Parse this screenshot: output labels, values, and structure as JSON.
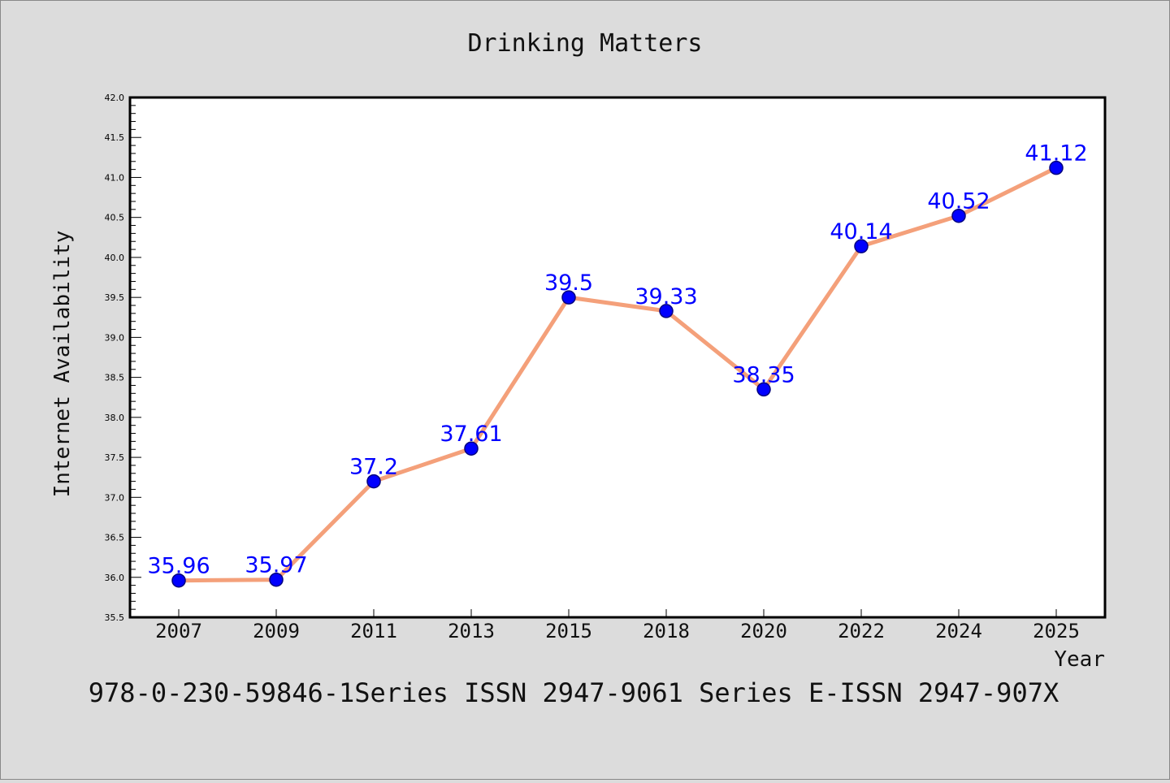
{
  "chart_data": {
    "type": "line",
    "title": "Drinking Matters",
    "xlabel": "Year",
    "ylabel": "Internet Availability",
    "categories": [
      "2007",
      "2009",
      "2011",
      "2013",
      "2015",
      "2018",
      "2020",
      "2022",
      "2024",
      "2025"
    ],
    "series": [
      {
        "values": [
          35.96,
          35.97,
          37.2,
          37.61,
          39.5,
          39.33,
          38.35,
          40.14,
          40.52,
          41.12
        ],
        "labels": [
          "35.96",
          "35.97",
          "37.2",
          "37.61",
          "39.5",
          "39.33",
          "38.35",
          "40.14",
          "40.52",
          "41.12"
        ]
      }
    ],
    "ylim": [
      35.5,
      42.0
    ],
    "yticks": [
      "35.5",
      "36.0",
      "36.5",
      "37.0",
      "37.5",
      "38.0",
      "38.5",
      "39.0",
      "39.5",
      "40.0",
      "40.5",
      "41.0",
      "41.5",
      "42.0"
    ],
    "grid": false,
    "legend": "none",
    "colors": {
      "line": "#f4a07a",
      "marker": "#0000ff",
      "marker_edge": "#000080",
      "data_label": "#0000ff",
      "background": "#dcdcdc",
      "plot_area": "#ffffff"
    }
  },
  "footer": {
    "text": "978-0-230-59846-1Series ISSN 2947-9061 Series E-ISSN 2947-907X"
  }
}
